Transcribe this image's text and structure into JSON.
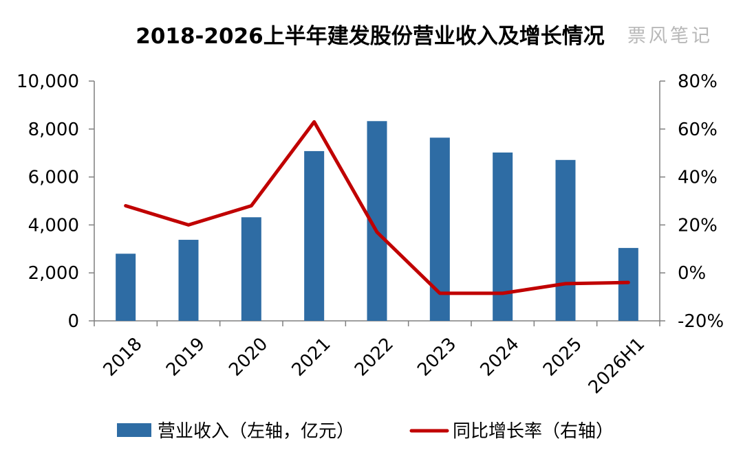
{
  "chart_data": {
    "type": "bar",
    "title": "2018-2026上半年建发股份营业收入及增长情况",
    "watermark": "票风笔记",
    "categories": [
      "2018",
      "2019",
      "2020",
      "2021",
      "2022",
      "2023",
      "2024",
      "2025",
      "2026H1"
    ],
    "series": [
      {
        "name": "营业收入（左轴，亿元）",
        "type": "bar",
        "axis": "left",
        "color": "#2e6ca4",
        "values": [
          2800,
          3380,
          4320,
          7080,
          8330,
          7640,
          7020,
          6710,
          3040
        ]
      },
      {
        "name": "同比增长率（右轴）",
        "type": "line",
        "axis": "right",
        "color": "#c00000",
        "values": [
          28,
          20,
          28,
          63,
          17,
          -8.5,
          -8.5,
          -4.5,
          -4
        ]
      }
    ],
    "y_left": {
      "ylim": [
        0,
        10000
      ],
      "ticks": [
        0,
        2000,
        4000,
        6000,
        8000,
        10000
      ],
      "tick_labels": [
        "0",
        "2,000",
        "4,000",
        "6,000",
        "8,000",
        "10,000"
      ]
    },
    "y_right": {
      "ylim": [
        -20,
        80
      ],
      "ticks": [
        -20,
        0,
        20,
        40,
        60,
        80
      ],
      "tick_labels": [
        "-20%",
        "0%",
        "20%",
        "40%",
        "60%",
        "80%"
      ]
    },
    "grid": false,
    "legend_position": "bottom"
  }
}
